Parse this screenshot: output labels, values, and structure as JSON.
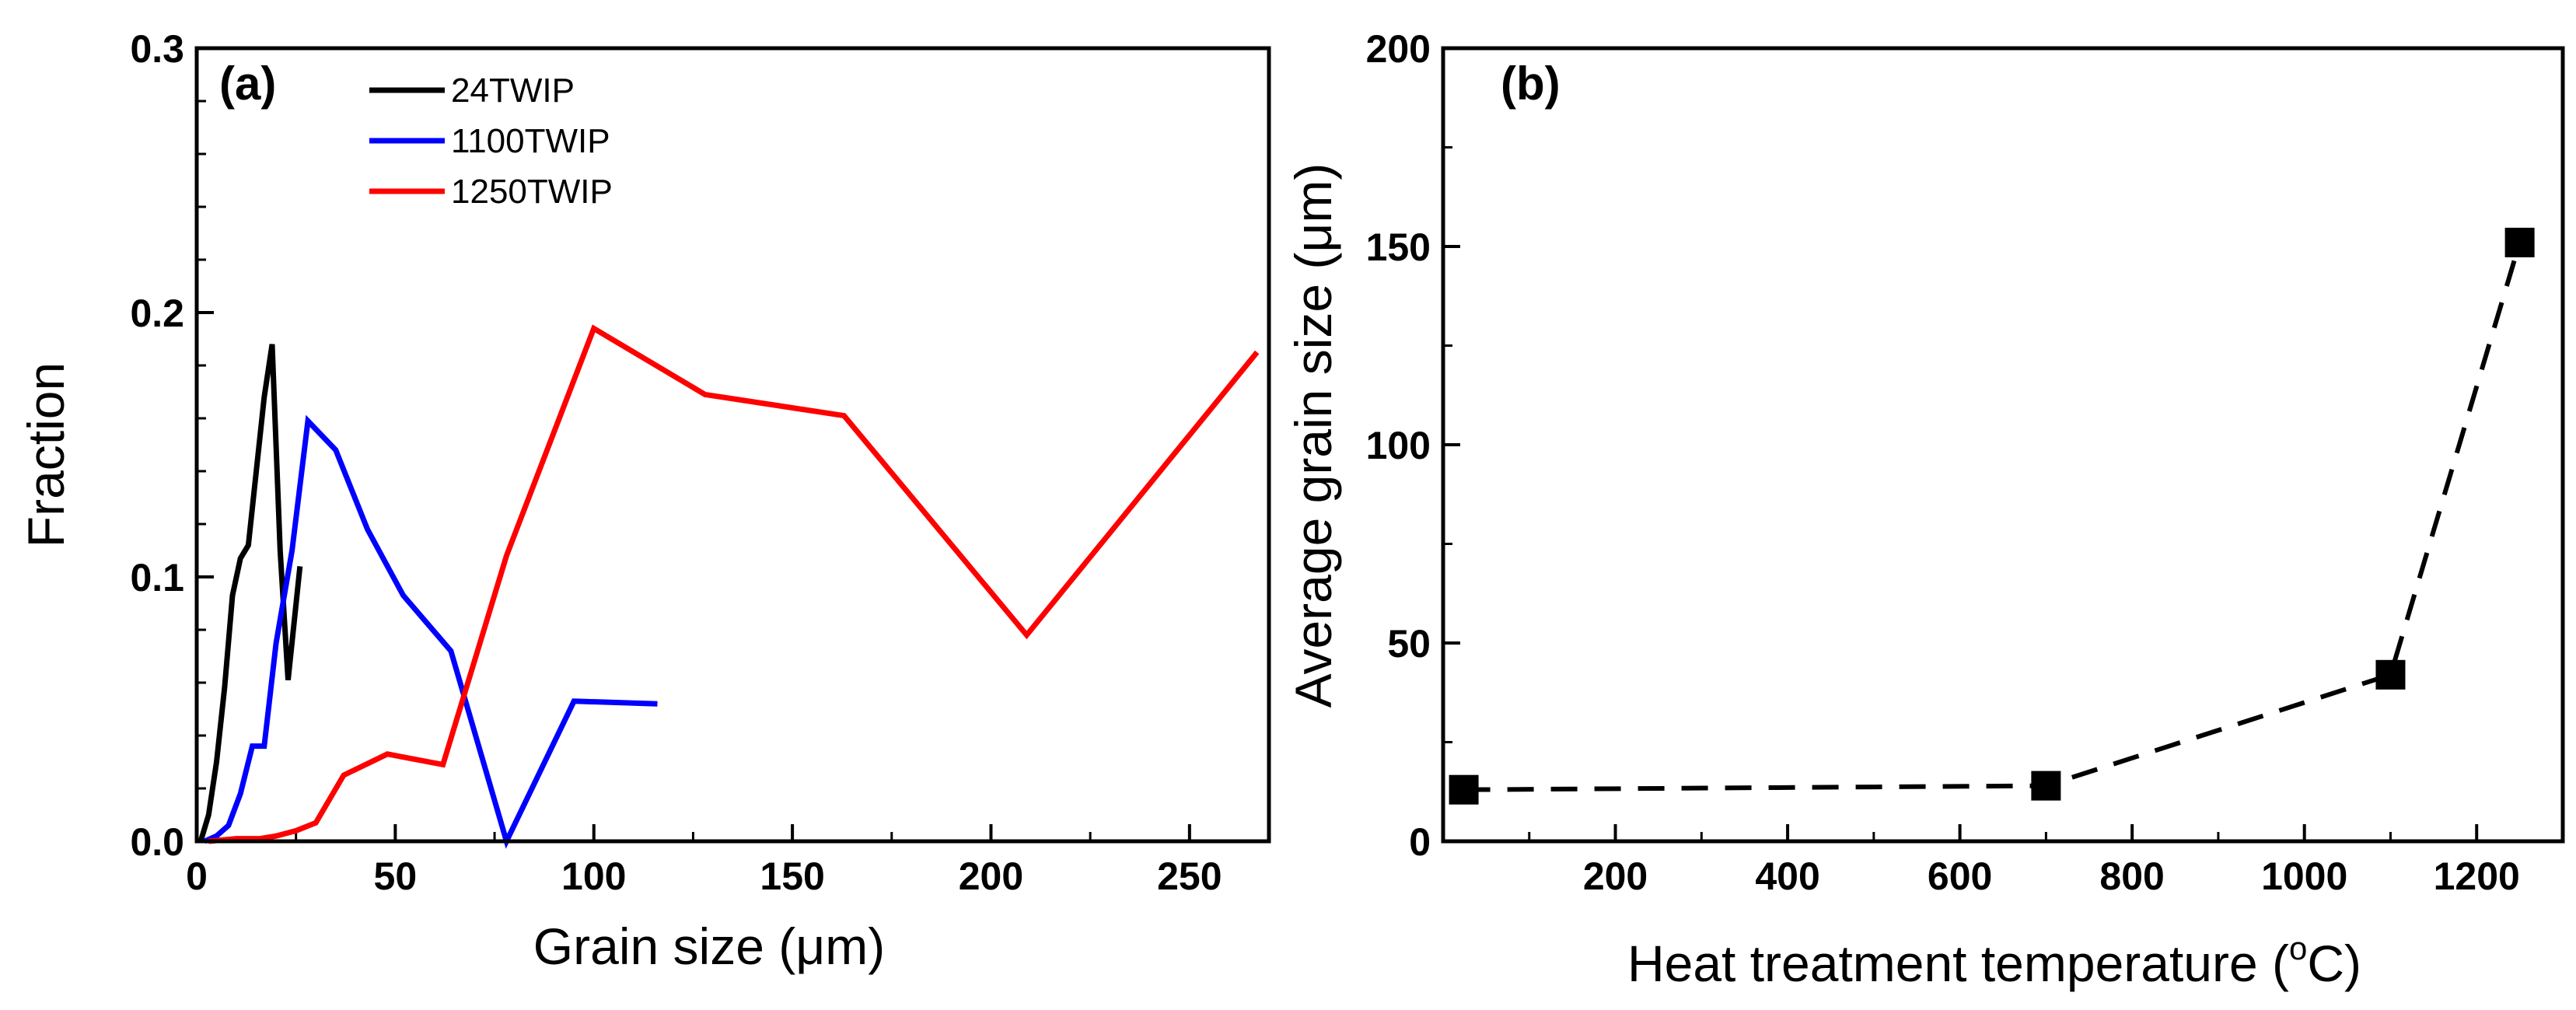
{
  "chart_data": [
    {
      "type": "line",
      "panel_label": "(a)",
      "xlabel": "Grain size (μm)",
      "ylabel": "Fraction",
      "xlim": [
        0,
        270
      ],
      "ylim": [
        0,
        0.3
      ],
      "x_ticks": [
        "0",
        "50",
        "100",
        "150",
        "200",
        "250"
      ],
      "y_ticks": [
        "0.0",
        "0.1",
        "0.2",
        "0.3"
      ],
      "legend_position": "top-center",
      "series": [
        {
          "name": "24TWIP",
          "color": "#000000",
          "x": [
            1,
            3,
            5,
            7,
            9,
            11,
            13,
            15,
            17,
            19,
            21,
            23,
            26
          ],
          "y": [
            0.0,
            0.01,
            0.03,
            0.058,
            0.093,
            0.107,
            0.112,
            0.14,
            0.168,
            0.188,
            0.11,
            0.061,
            0.104
          ]
        },
        {
          "name": "1100TWIP",
          "color": "#0000ff",
          "x": [
            2,
            5,
            8,
            11,
            14,
            17,
            20,
            24,
            28,
            35,
            43,
            52,
            64,
            78,
            95,
            116
          ],
          "y": [
            0.0,
            0.002,
            0.006,
            0.018,
            0.036,
            0.036,
            0.075,
            0.11,
            0.159,
            0.148,
            0.118,
            0.093,
            0.072,
            0.0,
            0.053,
            0.052
          ]
        },
        {
          "name": "1250TWIP",
          "color": "#ff0000",
          "x": [
            3,
            10,
            16,
            20,
            25,
            30,
            37,
            48,
            62,
            78,
            100,
            128,
            163,
            209,
            267
          ],
          "y": [
            0.0,
            0.001,
            0.001,
            0.002,
            0.004,
            0.007,
            0.025,
            0.033,
            0.029,
            0.108,
            0.194,
            0.169,
            0.161,
            0.078,
            0.185
          ]
        }
      ]
    },
    {
      "type": "scatter",
      "panel_label": "(b)",
      "xlabel": "Heat treatment temperature (°C)",
      "xlabel_main": "Heat treatment temperature (",
      "xlabel_degree": "o",
      "xlabel_unit": "C)",
      "ylabel": "Average grain size (μm)",
      "xlim": [
        0,
        1300
      ],
      "ylim": [
        0,
        200
      ],
      "x_ticks": [
        "200",
        "400",
        "600",
        "800",
        "1000",
        "1200"
      ],
      "y_ticks": [
        "0",
        "50",
        "100",
        "150",
        "200"
      ],
      "line_style": "dashed",
      "series": [
        {
          "name": "Average grain size",
          "color": "#000000",
          "x": [
            24,
            700,
            1100,
            1250
          ],
          "y": [
            13,
            14,
            42,
            151
          ]
        }
      ]
    }
  ]
}
